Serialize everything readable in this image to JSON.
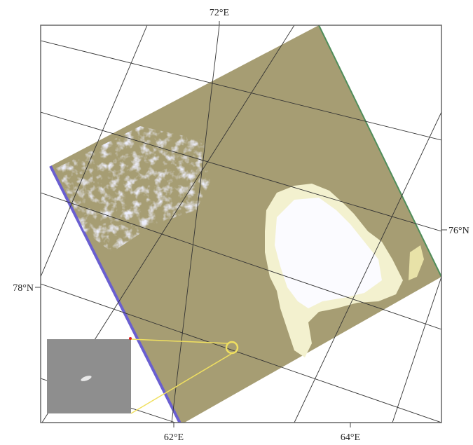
{
  "labels": {
    "top": "72°E",
    "right": "76°N",
    "left": "78°N",
    "bottom_left": "62°E",
    "bottom_right": "64°E"
  }
}
